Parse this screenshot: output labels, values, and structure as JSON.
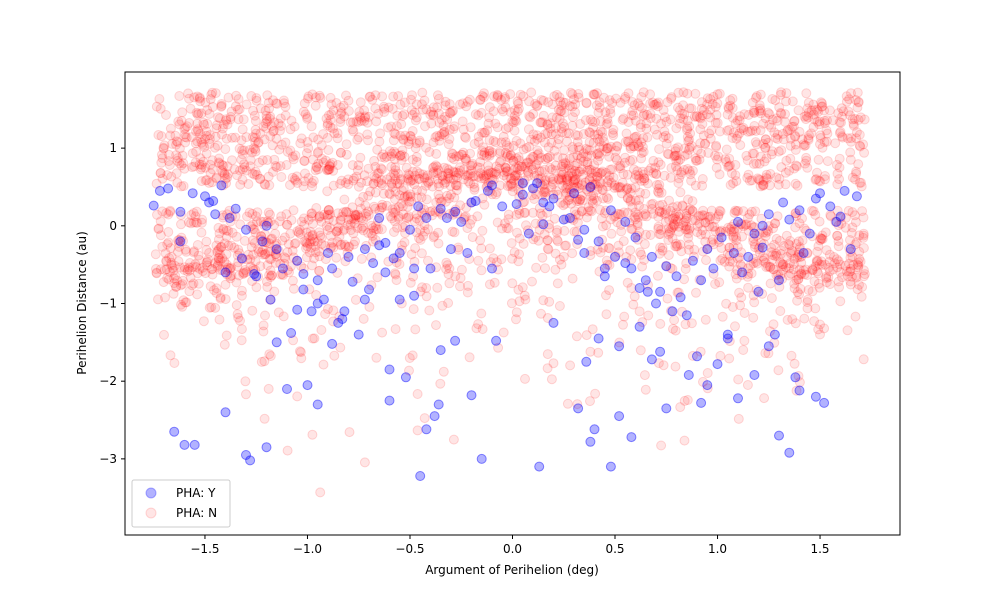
{
  "chart_data": {
    "type": "scatter",
    "xlabel": "Argument of Perihelion (deg)",
    "ylabel": "Perihelion Distance (au)",
    "xlim": [
      -1.89,
      1.89
    ],
    "ylim": [
      -3.98,
      1.98
    ],
    "xticks": [
      -1.5,
      -1.0,
      -0.5,
      0.0,
      0.5,
      1.0,
      1.5
    ],
    "xtick_labels": [
      "−1.5",
      "−1.0",
      "−0.5",
      "0.0",
      "0.5",
      "1.0",
      "1.5"
    ],
    "yticks": [
      1,
      0,
      -1,
      -2,
      -3
    ],
    "ytick_labels": [
      "1",
      "0",
      "−1",
      "−2",
      "−3"
    ],
    "grid": false,
    "legend_position": "lower-left",
    "series": [
      {
        "name": "PHA: Y",
        "color": "#0000ff",
        "alpha": 0.3,
        "n_points": 200,
        "points": [
          [
            -1.75,
            0.26
          ],
          [
            -1.68,
            0.48
          ],
          [
            -1.62,
            0.18
          ],
          [
            -1.56,
            0.42
          ],
          [
            -1.48,
            0.3
          ],
          [
            -1.42,
            0.52
          ],
          [
            -1.38,
            0.1
          ],
          [
            -1.3,
            -0.05
          ],
          [
            -1.22,
            -0.2
          ],
          [
            -1.15,
            -0.3
          ],
          [
            -1.05,
            -0.45
          ],
          [
            -0.95,
            -0.7
          ],
          [
            -0.88,
            -0.55
          ],
          [
            -0.8,
            -0.4
          ],
          [
            -0.72,
            -0.3
          ],
          [
            -0.65,
            -0.25
          ],
          [
            -0.58,
            -0.42
          ],
          [
            -0.5,
            -0.05
          ],
          [
            -0.42,
            0.1
          ],
          [
            -0.35,
            0.22
          ],
          [
            -0.28,
            0.18
          ],
          [
            -0.2,
            0.3
          ],
          [
            -0.12,
            0.45
          ],
          [
            -0.05,
            0.25
          ],
          [
            0.05,
            0.4
          ],
          [
            0.12,
            0.55
          ],
          [
            0.2,
            0.35
          ],
          [
            0.28,
            0.1
          ],
          [
            0.35,
            -0.05
          ],
          [
            0.42,
            -0.2
          ],
          [
            0.5,
            -0.4
          ],
          [
            0.58,
            -0.55
          ],
          [
            0.65,
            -0.7
          ],
          [
            0.72,
            -0.85
          ],
          [
            0.8,
            -0.65
          ],
          [
            0.88,
            -0.45
          ],
          [
            0.95,
            -0.3
          ],
          [
            1.02,
            -0.15
          ],
          [
            1.1,
            0.05
          ],
          [
            1.18,
            -0.1
          ],
          [
            1.25,
            0.15
          ],
          [
            1.32,
            0.3
          ],
          [
            1.4,
            0.2
          ],
          [
            1.48,
            0.35
          ],
          [
            1.55,
            0.25
          ],
          [
            1.62,
            0.45
          ],
          [
            1.68,
            0.38
          ],
          [
            -1.65,
            -2.65
          ],
          [
            -1.55,
            -2.82
          ],
          [
            -1.28,
            -3.02
          ],
          [
            -1.3,
            -2.95
          ],
          [
            -1.2,
            -2.85
          ],
          [
            -1.1,
            -2.1
          ],
          [
            -1.0,
            -2.05
          ],
          [
            -0.95,
            -2.3
          ],
          [
            -0.45,
            -3.22
          ],
          [
            -0.38,
            -2.45
          ],
          [
            -0.42,
            -2.62
          ],
          [
            -0.15,
            -3.0
          ],
          [
            -0.2,
            -2.18
          ],
          [
            0.13,
            -3.1
          ],
          [
            0.48,
            -3.1
          ],
          [
            0.52,
            -2.45
          ],
          [
            0.58,
            -2.72
          ],
          [
            0.4,
            -2.62
          ],
          [
            0.38,
            -2.78
          ],
          [
            0.86,
            -1.92
          ],
          [
            0.95,
            -2.05
          ],
          [
            1.1,
            -2.22
          ],
          [
            1.3,
            -2.7
          ],
          [
            1.35,
            -2.92
          ],
          [
            1.38,
            -1.95
          ],
          [
            1.52,
            -2.28
          ],
          [
            -1.6,
            -2.82
          ],
          [
            -1.15,
            -1.5
          ],
          [
            -1.05,
            -1.08
          ],
          [
            -0.95,
            -1.0
          ],
          [
            -0.88,
            -1.52
          ],
          [
            -0.75,
            -1.4
          ],
          [
            -0.55,
            -0.95
          ],
          [
            -0.48,
            -0.9
          ],
          [
            -0.28,
            -1.48
          ],
          [
            -0.08,
            -1.48
          ],
          [
            0.2,
            -1.25
          ],
          [
            0.42,
            -1.45
          ],
          [
            0.52,
            -1.55
          ],
          [
            0.62,
            -1.3
          ],
          [
            0.68,
            -1.72
          ],
          [
            0.72,
            -1.62
          ],
          [
            0.78,
            -1.1
          ],
          [
            0.9,
            -1.68
          ],
          [
            1.05,
            -1.45
          ],
          [
            1.25,
            -1.55
          ],
          [
            1.28,
            -1.4
          ],
          [
            -1.4,
            -0.6
          ],
          [
            -1.32,
            -0.42
          ],
          [
            -1.12,
            -0.55
          ],
          [
            -1.02,
            -0.82
          ],
          [
            -0.92,
            -0.95
          ],
          [
            -0.82,
            -1.1
          ],
          [
            -0.7,
            -0.82
          ],
          [
            -0.62,
            -0.6
          ],
          [
            -0.55,
            -0.35
          ],
          [
            -0.4,
            -0.55
          ],
          [
            -0.32,
            0.1
          ],
          [
            -0.25,
            0.05
          ],
          [
            -0.18,
            0.32
          ],
          [
            0.02,
            0.28
          ],
          [
            0.1,
            0.48
          ],
          [
            0.18,
            0.25
          ],
          [
            0.25,
            0.08
          ],
          [
            0.32,
            -0.18
          ],
          [
            0.45,
            -0.55
          ],
          [
            0.55,
            -0.48
          ],
          [
            0.62,
            -0.8
          ],
          [
            0.75,
            -0.52
          ],
          [
            0.82,
            -0.92
          ],
          [
            0.92,
            -0.7
          ],
          [
            0.98,
            -0.55
          ],
          [
            1.08,
            -0.35
          ],
          [
            1.15,
            -0.4
          ],
          [
            1.22,
            -0.28
          ],
          [
            1.35,
            0.08
          ],
          [
            1.45,
            -0.1
          ],
          [
            1.58,
            0.05
          ],
          [
            1.65,
            -0.3
          ],
          [
            -1.72,
            0.45
          ],
          [
            -1.5,
            0.38
          ],
          [
            -1.35,
            0.22
          ],
          [
            -1.25,
            -0.65
          ],
          [
            -1.18,
            -0.95
          ],
          [
            -1.08,
            -1.38
          ],
          [
            -0.98,
            -1.1
          ],
          [
            -0.85,
            -1.25
          ],
          [
            -0.78,
            -0.72
          ],
          [
            -0.68,
            -0.48
          ],
          [
            -0.6,
            -1.85
          ],
          [
            -0.52,
            -1.95
          ],
          [
            -0.35,
            -1.6
          ],
          [
            -0.3,
            -0.3
          ],
          [
            -0.22,
            -0.35
          ],
          [
            -0.1,
            0.52
          ],
          [
            0.08,
            -0.1
          ],
          [
            0.15,
            0.3
          ],
          [
            0.3,
            0.42
          ],
          [
            0.38,
            0.5
          ],
          [
            0.48,
            0.2
          ],
          [
            0.55,
            0.05
          ],
          [
            0.6,
            -0.15
          ],
          [
            0.7,
            -1.0
          ],
          [
            0.85,
            -1.15
          ],
          [
            1.0,
            -1.78
          ],
          [
            1.12,
            -0.6
          ],
          [
            1.2,
            -0.85
          ],
          [
            1.3,
            -0.7
          ],
          [
            1.42,
            -0.35
          ],
          [
            1.5,
            0.42
          ],
          [
            1.6,
            0.12
          ],
          [
            -1.45,
            0.15
          ],
          [
            -0.9,
            -0.35
          ],
          [
            -0.1,
            -0.55
          ],
          [
            0.35,
            -0.35
          ],
          [
            0.45,
            -0.65
          ],
          [
            -0.62,
            -0.22
          ],
          [
            -0.48,
            -0.55
          ],
          [
            0.68,
            -0.4
          ],
          [
            1.05,
            -1.4
          ],
          [
            -1.26,
            -0.62
          ],
          [
            -0.36,
            -2.3
          ],
          [
            0.15,
            0.02
          ],
          [
            0.92,
            -2.28
          ],
          [
            1.18,
            -1.92
          ],
          [
            -1.62,
            -0.2
          ],
          [
            -0.72,
            -0.95
          ],
          [
            0.36,
            -1.75
          ],
          [
            -1.02,
            -0.62
          ],
          [
            1.48,
            -2.2
          ],
          [
            -0.46,
            0.25
          ],
          [
            0.05,
            0.55
          ],
          [
            0.66,
            -0.85
          ],
          [
            -0.83,
            -1.2
          ],
          [
            1.22,
            0.0
          ],
          [
            -1.2,
            0.0
          ],
          [
            0.32,
            -2.35
          ],
          [
            -1.46,
            0.32
          ],
          [
            1.4,
            -2.12
          ],
          [
            -0.6,
            -2.25
          ],
          [
            0.75,
            -2.35
          ],
          [
            -0.65,
            0.1
          ],
          [
            -1.4,
            -2.4
          ]
        ]
      },
      {
        "name": "PHA: N",
        "color": "#ff0000",
        "alpha": 0.1,
        "n_points": 3000,
        "points": []
      }
    ]
  }
}
